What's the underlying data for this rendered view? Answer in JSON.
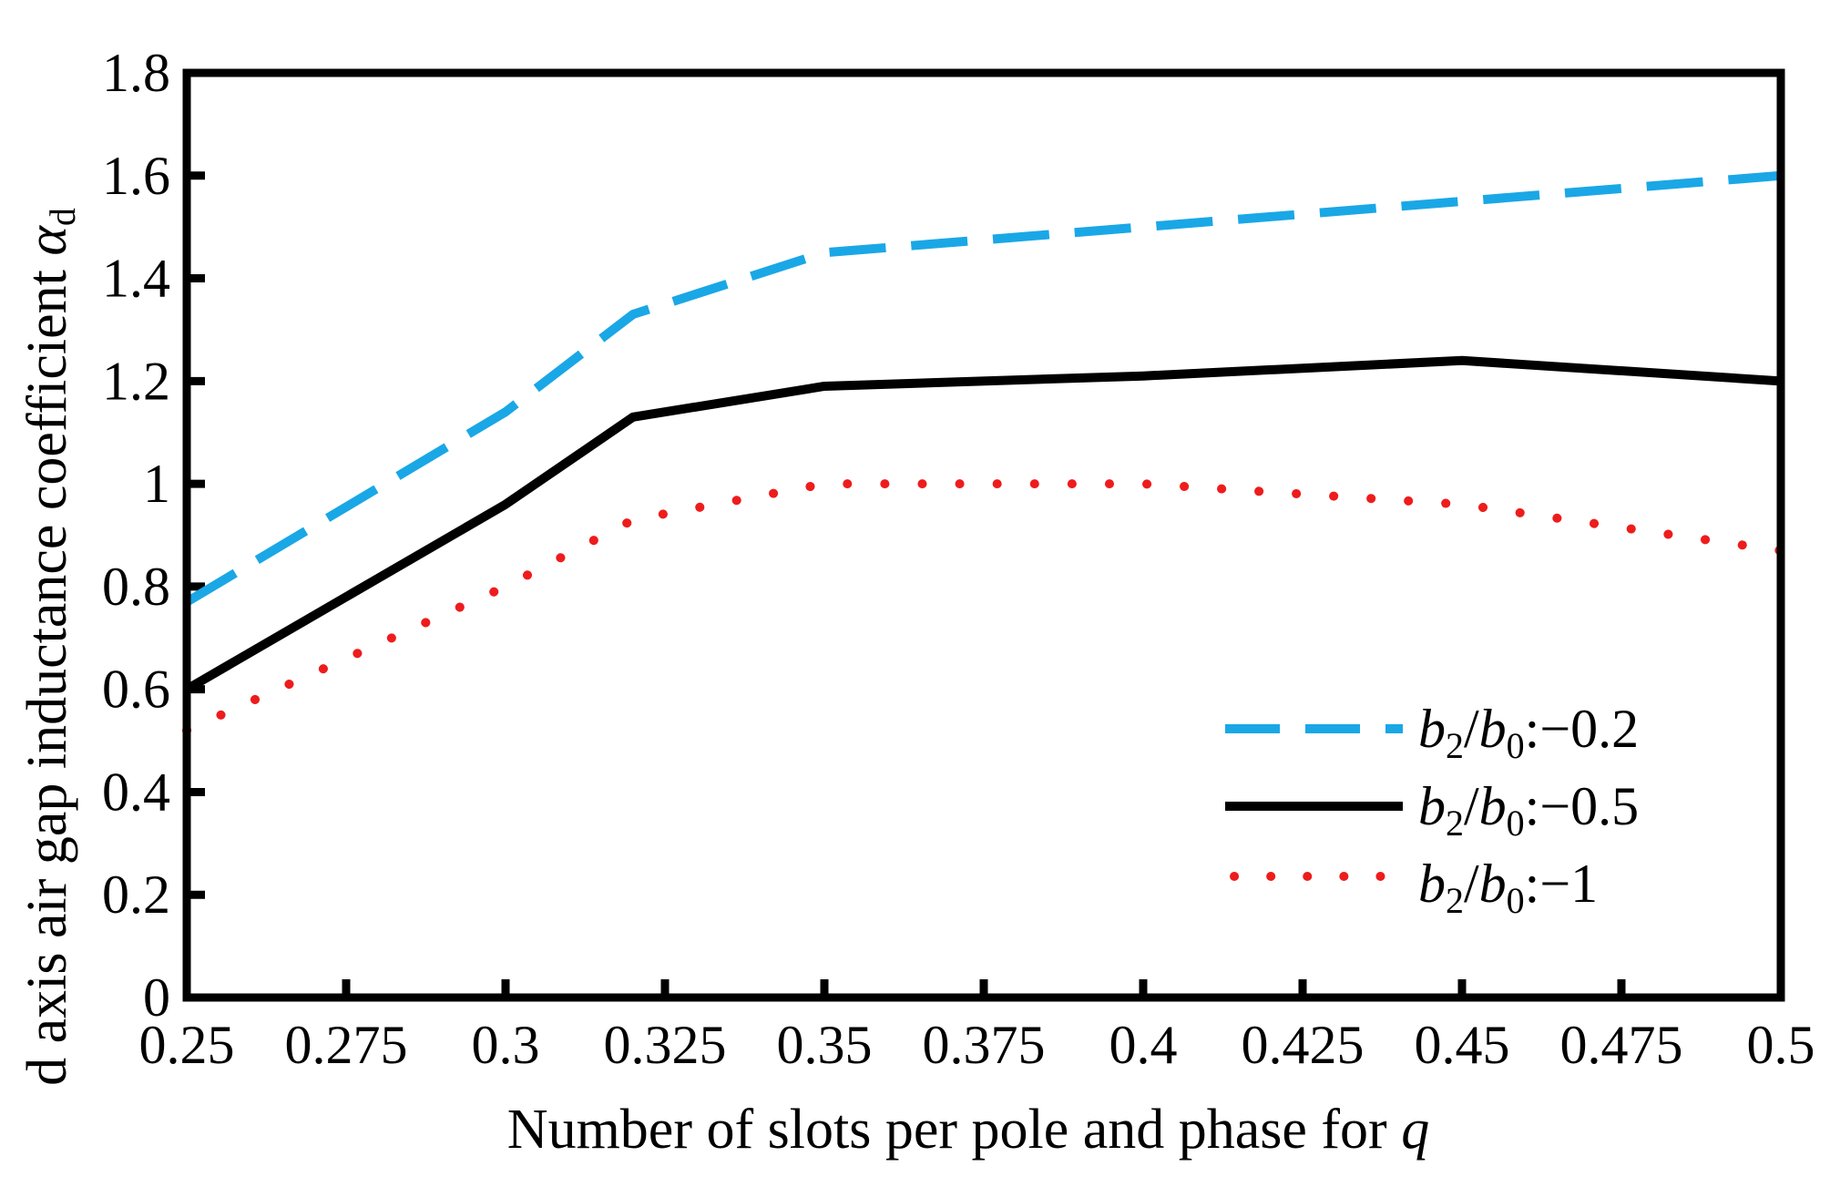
{
  "chart_data": {
    "type": "line",
    "title": "",
    "xlabel_main": "Number of slots per pole and phase for ",
    "xlabel_var": "q",
    "ylabel_main": "d axis air gap inductance coefficient ",
    "ylabel_symbol": "α",
    "ylabel_sub": "d",
    "xlim": [
      0.25,
      0.5
    ],
    "ylim": [
      0,
      1.8
    ],
    "x_ticks": [
      0.25,
      0.275,
      0.3,
      0.325,
      0.35,
      0.375,
      0.4,
      0.425,
      0.45,
      0.475,
      0.5
    ],
    "x_tick_labels": [
      "0.25",
      "0.275",
      "0.3",
      "0.325",
      "0.35",
      "0.375",
      "0.4",
      "0.425",
      "0.45",
      "0.475",
      "0.5"
    ],
    "y_ticks": [
      0,
      0.2,
      0.4,
      0.6,
      0.8,
      1,
      1.2,
      1.4,
      1.6,
      1.8
    ],
    "y_tick_labels": [
      "0",
      "0.2",
      "0.4",
      "0.6",
      "0.8",
      "1",
      "1.2",
      "1.4",
      "1.6",
      "1.8"
    ],
    "grid": false,
    "legend_position": "bottom-right",
    "series": [
      {
        "name": "b2/b0:−0.2",
        "legend_b": "b",
        "legend_sub2": "2",
        "legend_slash": "/",
        "legend_sub0": "0",
        "legend_value": ":−0.2",
        "color": "#1aa7e6",
        "style": "dashed",
        "x": [
          0.25,
          0.3,
          0.32,
          0.35,
          0.4,
          0.45,
          0.5
        ],
        "y": [
          0.77,
          1.14,
          1.33,
          1.45,
          1.5,
          1.55,
          1.6
        ]
      },
      {
        "name": "b2/b0:−0.5",
        "legend_b": "b",
        "legend_sub2": "2",
        "legend_slash": "/",
        "legend_sub0": "0",
        "legend_value": ":−0.5",
        "color": "#000000",
        "style": "solid",
        "x": [
          0.25,
          0.3,
          0.32,
          0.35,
          0.4,
          0.45,
          0.5
        ],
        "y": [
          0.6,
          0.96,
          1.13,
          1.19,
          1.21,
          1.24,
          1.2
        ]
      },
      {
        "name": "b2/b0:−1",
        "legend_b": "b",
        "legend_sub2": "2",
        "legend_slash": "/",
        "legend_sub0": "0",
        "legend_value": ":−1",
        "color": "#ee1c1c",
        "style": "dotted",
        "x": [
          0.25,
          0.3,
          0.32,
          0.35,
          0.4,
          0.45,
          0.5
        ],
        "y": [
          0.52,
          0.8,
          0.93,
          1.0,
          1.0,
          0.96,
          0.87
        ]
      }
    ]
  }
}
